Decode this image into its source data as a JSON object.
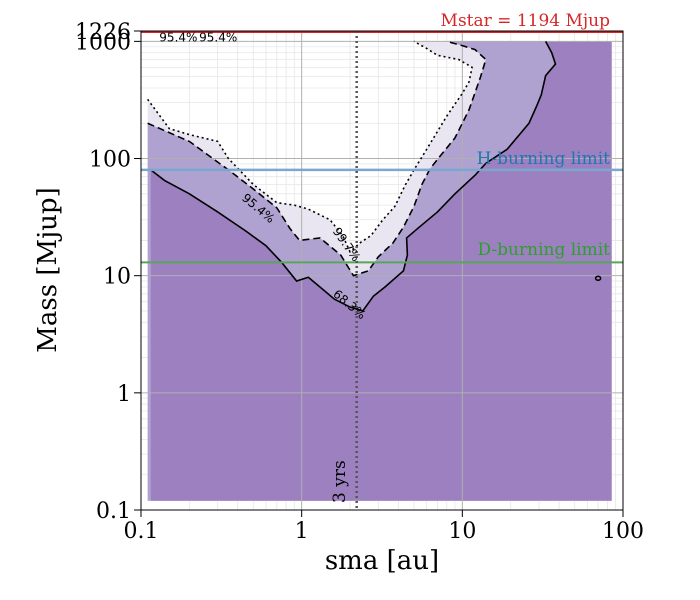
{
  "chart_data": {
    "type": "contour",
    "xlabel": "sma [au]",
    "ylabel": "Mass [Mjup]",
    "x_scale": "log",
    "y_scale": "log",
    "xlim": [
      0.1,
      100
    ],
    "ylim": [
      0.1,
      1226
    ],
    "x_ticks": [
      {
        "value": 0.1,
        "label": "0.1"
      },
      {
        "value": 1,
        "label": "1"
      },
      {
        "value": 10,
        "label": "10"
      },
      {
        "value": 100,
        "label": "100"
      }
    ],
    "y_ticks": [
      {
        "value": 0.1,
        "label": "0.1"
      },
      {
        "value": 1,
        "label": "1"
      },
      {
        "value": 10,
        "label": "10"
      },
      {
        "value": 100,
        "label": "100"
      },
      {
        "value": 1000,
        "label": "1000"
      },
      {
        "value": 1226,
        "label": "1226"
      }
    ],
    "grid": true,
    "annotations": {
      "mstar": {
        "text": "Mstar = 1194 Mjup",
        "color": "#d62728"
      },
      "h_burning": {
        "text": "H-burning limit",
        "value": 80,
        "color": "#1f77b4"
      },
      "d_burning": {
        "text": "D-burning limit",
        "value": 13,
        "color": "#2ca02c"
      },
      "period": {
        "text": "3 yrs",
        "value": 2.2
      }
    },
    "series": [
      {
        "name": "68.3%",
        "style": "solid",
        "fill": "#9d80bf",
        "points": [
          [
            0.115,
            80
          ],
          [
            0.14,
            65
          ],
          [
            0.2,
            50
          ],
          [
            0.3,
            35
          ],
          [
            0.45,
            24
          ],
          [
            0.6,
            18
          ],
          [
            0.75,
            13
          ],
          [
            0.93,
            9
          ],
          [
            1.1,
            9.7
          ],
          [
            1.3,
            8
          ],
          [
            1.6,
            6.3
          ],
          [
            2.0,
            5.4
          ],
          [
            2.4,
            5.0
          ],
          [
            2.8,
            6.7
          ],
          [
            3.3,
            8.0
          ],
          [
            4.3,
            11
          ],
          [
            4.55,
            15
          ],
          [
            4.5,
            21
          ],
          [
            5.4,
            26
          ],
          [
            7,
            35
          ],
          [
            9,
            50
          ],
          [
            12,
            72
          ],
          [
            14,
            91
          ],
          [
            19,
            120
          ],
          [
            26,
            200
          ],
          [
            29,
            280
          ],
          [
            31,
            350
          ],
          [
            33,
            510
          ],
          [
            38,
            640
          ],
          [
            36,
            800
          ],
          [
            33,
            1000
          ]
        ]
      },
      {
        "name": "95.4%",
        "style": "dashed",
        "fill": "#b0a2d0",
        "points": [
          [
            0.11,
            200
          ],
          [
            0.2,
            140
          ],
          [
            0.35,
            80
          ],
          [
            0.5,
            55
          ],
          [
            0.7,
            38
          ],
          [
            0.85,
            25
          ],
          [
            0.97,
            20
          ],
          [
            1.3,
            21
          ],
          [
            1.75,
            15
          ],
          [
            2.1,
            10
          ],
          [
            2.6,
            11
          ],
          [
            3,
            14.5
          ],
          [
            3.7,
            19
          ],
          [
            4.3,
            26
          ],
          [
            5,
            39
          ],
          [
            5.6,
            60
          ],
          [
            6.3,
            82
          ],
          [
            7.4,
            108
          ],
          [
            9,
            150
          ],
          [
            11,
            260
          ],
          [
            13,
            500
          ],
          [
            14,
            700
          ],
          [
            12,
            850
          ],
          [
            10,
            920
          ],
          [
            8,
            1000
          ]
        ]
      },
      {
        "name": "99.7%",
        "style": "dotted",
        "fill": "#e9e6f1",
        "points": [
          [
            0.11,
            320
          ],
          [
            0.15,
            180
          ],
          [
            0.2,
            160
          ],
          [
            0.3,
            140
          ],
          [
            0.35,
            100
          ],
          [
            0.5,
            60
          ],
          [
            0.7,
            42
          ],
          [
            0.9,
            40
          ],
          [
            1.1,
            37
          ],
          [
            1.5,
            30
          ],
          [
            1.8,
            22
          ],
          [
            2.0,
            16
          ],
          [
            2.3,
            19
          ],
          [
            2.7,
            22
          ],
          [
            3.2,
            30
          ],
          [
            3.8,
            39
          ],
          [
            4.4,
            59
          ],
          [
            5,
            80
          ],
          [
            6,
            120
          ],
          [
            8,
            230
          ],
          [
            10,
            360
          ],
          [
            11,
            450
          ],
          [
            11.5,
            600
          ],
          [
            9.5,
            700
          ],
          [
            7,
            760
          ],
          [
            6,
            870
          ],
          [
            5,
            1000
          ]
        ]
      }
    ],
    "contour_labels": [
      {
        "text": "95.4%",
        "x": 0.13,
        "y": 1000
      },
      {
        "text": "95.4%",
        "x": 0.23,
        "y": 1000
      },
      {
        "text": "95.4%",
        "x": 0.42,
        "y": 45
      },
      {
        "text": "99.7%",
        "x": 1.55,
        "y": 24
      },
      {
        "text": "68.3%",
        "x": 1.55,
        "y": 6.8
      }
    ],
    "extra_contours": [
      {
        "style": "solid",
        "description": "small blob",
        "x": 70,
        "y": 9.5
      }
    ]
  }
}
